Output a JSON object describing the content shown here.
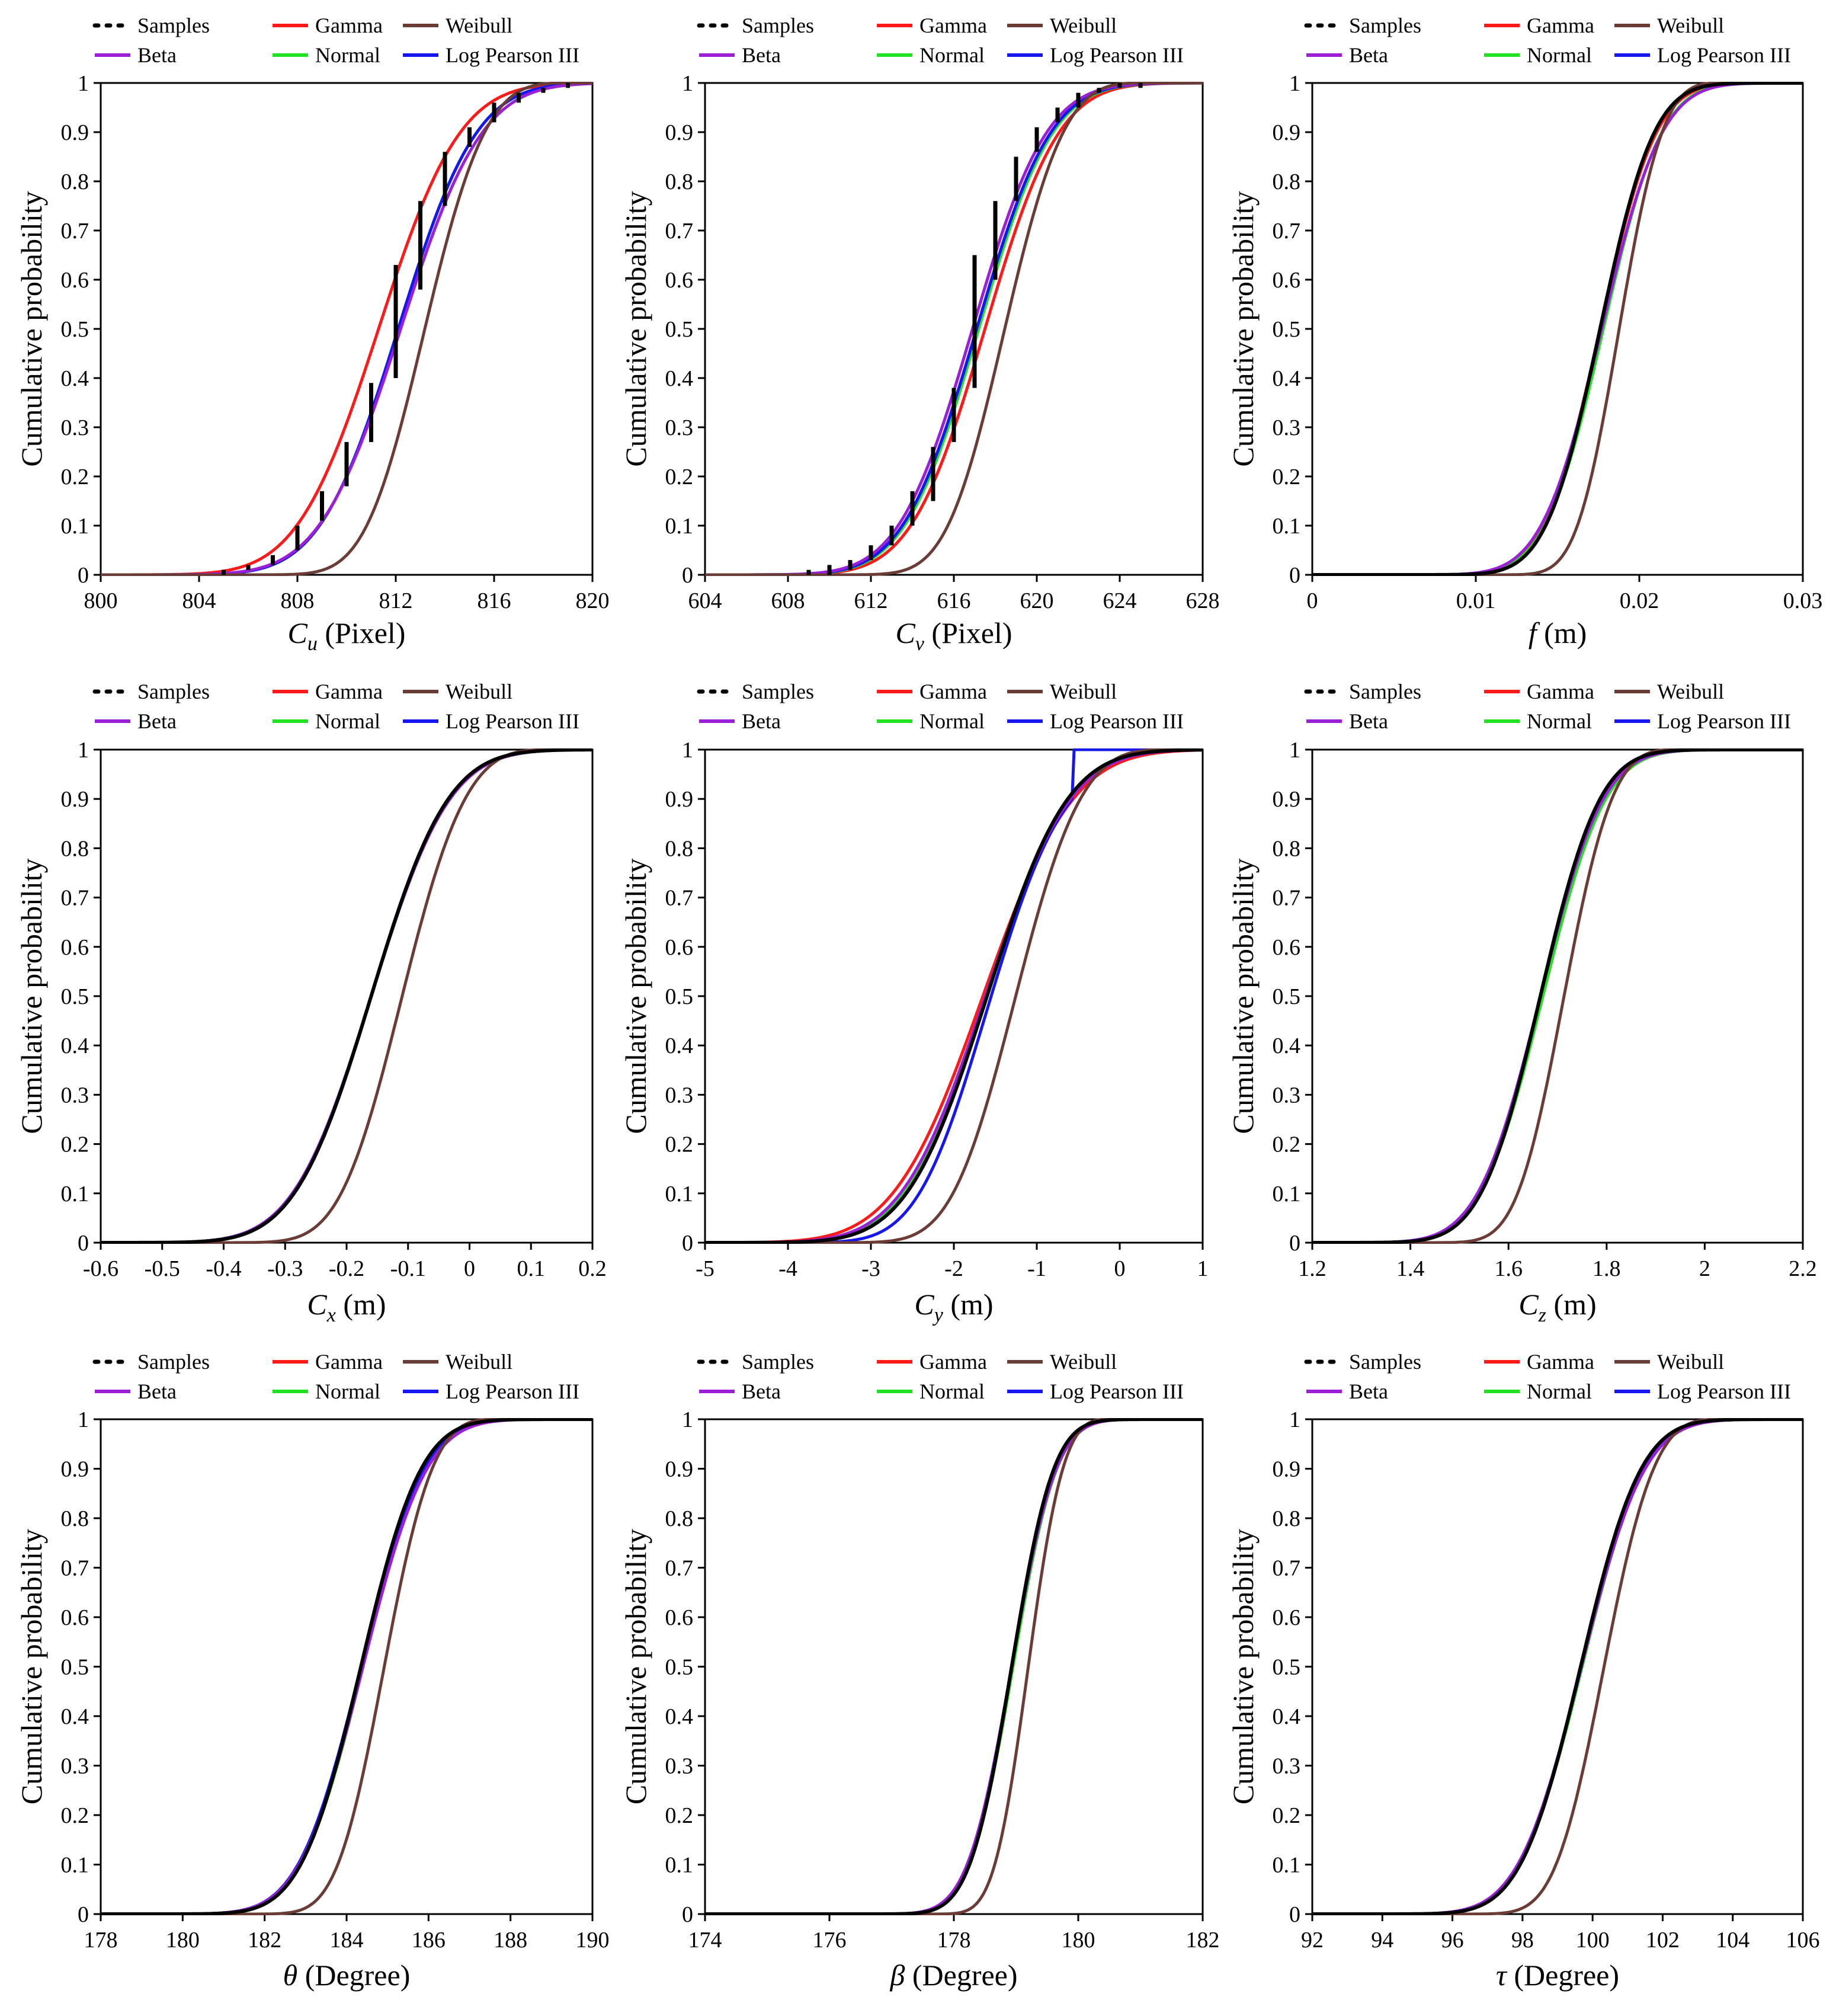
{
  "figure": {
    "ylabel": "Cumulative probability",
    "legend": {
      "row1": [
        "Samples",
        "Gamma",
        "Weibull"
      ],
      "row2": [
        "Beta",
        "Normal",
        "Log Pearson III"
      ]
    },
    "colors": {
      "Samples": "#000000",
      "Gamma": "#ff1a1a",
      "Weibull": "#6b3c35",
      "Beta": "#9b1fd6",
      "Normal": "#22e022",
      "Log Pearson III": "#1616f0"
    }
  },
  "chart_data": [
    {
      "type": "line",
      "id": "Cu",
      "xlabel_symbol": "C",
      "xlabel_sub": "u",
      "xlabel_unit": " (Pixel)",
      "xlim": [
        800,
        820
      ],
      "xticks": [
        "800",
        "804",
        "808",
        "812",
        "816",
        "820"
      ],
      "ylim": [
        0,
        1
      ],
      "yticks": [
        "0",
        "0.1",
        "0.2",
        "0.3",
        "0.4",
        "0.5",
        "0.6",
        "0.7",
        "0.8",
        "0.9",
        "1"
      ],
      "legend_position": "top",
      "ecdf_type": "bars",
      "samples_x": [
        805,
        806,
        807,
        808,
        809,
        810,
        811,
        812,
        813,
        814,
        815,
        816,
        817,
        818,
        819
      ],
      "samples_y": [
        [
          0.0,
          0.01
        ],
        [
          0.01,
          0.02
        ],
        [
          0.02,
          0.04
        ],
        [
          0.05,
          0.1
        ],
        [
          0.11,
          0.17
        ],
        [
          0.18,
          0.27
        ],
        [
          0.27,
          0.39
        ],
        [
          0.4,
          0.63
        ],
        [
          0.58,
          0.76
        ],
        [
          0.75,
          0.86
        ],
        [
          0.87,
          0.91
        ],
        [
          0.92,
          0.96
        ],
        [
          0.96,
          0.98
        ],
        [
          0.98,
          0.99
        ],
        [
          0.99,
          1.0
        ]
      ],
      "series": [
        {
          "name": "Gamma",
          "dist": "normal",
          "mu": 811.3,
          "sigma": 2.6
        },
        {
          "name": "Normal",
          "dist": "normal",
          "mu": 812.1,
          "sigma": 2.5
        },
        {
          "name": "Log Pearson III",
          "dist": "normal",
          "mu": 812.1,
          "sigma": 2.5
        },
        {
          "name": "Beta",
          "dist": "normal",
          "mu": 812.2,
          "sigma": 2.6
        },
        {
          "name": "Weibull",
          "dist": "weibull",
          "mu": 812.1,
          "sigma": 2.5
        }
      ]
    },
    {
      "type": "line",
      "id": "Cv",
      "xlabel_symbol": "C",
      "xlabel_sub": "v",
      "xlabel_unit": " (Pixel)",
      "xlim": [
        604,
        628
      ],
      "xticks": [
        "604",
        "608",
        "612",
        "616",
        "620",
        "624",
        "628"
      ],
      "ylim": [
        0,
        1
      ],
      "yticks": [
        "0",
        "0.1",
        "0.2",
        "0.3",
        "0.4",
        "0.5",
        "0.6",
        "0.7",
        "0.8",
        "0.9",
        "1"
      ],
      "legend_position": "top",
      "ecdf_type": "bars",
      "samples_x": [
        609,
        610,
        611,
        612,
        613,
        614,
        615,
        616,
        617,
        618,
        619,
        620,
        621,
        622,
        623,
        624,
        625
      ],
      "samples_y": [
        [
          0.0,
          0.01
        ],
        [
          0.0,
          0.02
        ],
        [
          0.01,
          0.03
        ],
        [
          0.03,
          0.06
        ],
        [
          0.06,
          0.1
        ],
        [
          0.1,
          0.17
        ],
        [
          0.15,
          0.26
        ],
        [
          0.27,
          0.38
        ],
        [
          0.38,
          0.65
        ],
        [
          0.6,
          0.76
        ],
        [
          0.76,
          0.85
        ],
        [
          0.86,
          0.91
        ],
        [
          0.92,
          0.95
        ],
        [
          0.95,
          0.98
        ],
        [
          0.98,
          0.99
        ],
        [
          0.99,
          1.0
        ],
        [
          0.99,
          1.0
        ]
      ],
      "series": [
        {
          "name": "Gamma",
          "dist": "normal",
          "mu": 617.5,
          "sigma": 2.8
        },
        {
          "name": "Normal",
          "dist": "normal",
          "mu": 617.2,
          "sigma": 2.8
        },
        {
          "name": "Log Pearson III",
          "dist": "normal",
          "mu": 617.1,
          "sigma": 2.8
        },
        {
          "name": "Beta",
          "dist": "normal",
          "mu": 616.9,
          "sigma": 2.8
        },
        {
          "name": "Weibull",
          "dist": "weibull",
          "mu": 617.2,
          "sigma": 2.9
        }
      ]
    },
    {
      "type": "line",
      "id": "f",
      "xlabel_symbol": "f",
      "xlabel_sub": "",
      "xlabel_unit": "  (m)",
      "xlim": [
        0,
        0.03
      ],
      "xticks": [
        "0",
        "0.01",
        "0.02",
        "0.03"
      ],
      "ylim": [
        0,
        1
      ],
      "yticks": [
        "0",
        "0.1",
        "0.2",
        "0.3",
        "0.4",
        "0.5",
        "0.6",
        "0.7",
        "0.8",
        "0.9",
        "1"
      ],
      "legend_position": "top",
      "ecdf_type": "curve",
      "series": [
        {
          "name": "Gamma",
          "dist": "normal",
          "mu": 0.0176,
          "sigma": 0.0027
        },
        {
          "name": "Normal",
          "dist": "normal",
          "mu": 0.0178,
          "sigma": 0.0028
        },
        {
          "name": "Log Pearson III",
          "dist": "normal",
          "mu": 0.0176,
          "sigma": 0.0026
        },
        {
          "name": "Beta",
          "dist": "normal",
          "mu": 0.0177,
          "sigma": 0.0029
        },
        {
          "name": "Weibull",
          "dist": "weibull",
          "mu": 0.0176,
          "sigma": 0.0027
        },
        {
          "name": "Samples",
          "dist": "normal",
          "mu": 0.0176,
          "sigma": 0.0026
        }
      ]
    },
    {
      "type": "line",
      "id": "Cx",
      "xlabel_symbol": "C",
      "xlabel_sub": "x",
      "xlabel_unit": " (m)",
      "xlim": [
        -0.6,
        0.2
      ],
      "xticks": [
        "-0.6",
        "-0.5",
        "-0.4",
        "-0.3",
        "-0.2",
        "-0.1",
        "0",
        "0.1",
        "0.2"
      ],
      "ylim": [
        0,
        1
      ],
      "yticks": [
        "0",
        "0.1",
        "0.2",
        "0.3",
        "0.4",
        "0.5",
        "0.6",
        "0.7",
        "0.8",
        "0.9",
        "1"
      ],
      "legend_position": "top",
      "ecdf_type": "curve",
      "series": [
        {
          "name": "Gamma",
          "dist": "normal",
          "mu": -0.16,
          "sigma": 0.1
        },
        {
          "name": "Normal",
          "dist": "normal",
          "mu": -0.16,
          "sigma": 0.1
        },
        {
          "name": "Log Pearson III",
          "dist": "normal",
          "mu": -0.16,
          "sigma": 0.1
        },
        {
          "name": "Beta",
          "dist": "normal",
          "mu": -0.16,
          "sigma": 0.1
        },
        {
          "name": "Weibull",
          "dist": "weibull",
          "mu": -0.155,
          "sigma": 0.105
        },
        {
          "name": "Samples",
          "dist": "normal",
          "mu": -0.16,
          "sigma": 0.098
        }
      ]
    },
    {
      "type": "line",
      "id": "Cy",
      "xlabel_symbol": "C",
      "xlabel_sub": "y",
      "xlabel_unit": " (m)",
      "xlim": [
        -5,
        1
      ],
      "xticks": [
        "-5",
        "-4",
        "-3",
        "-2",
        "-1",
        "0",
        "1"
      ],
      "ylim": [
        0,
        1
      ],
      "yticks": [
        "0",
        "0.1",
        "0.2",
        "0.3",
        "0.4",
        "0.5",
        "0.6",
        "0.7",
        "0.8",
        "0.9",
        "1"
      ],
      "legend_position": "top",
      "ecdf_type": "curve",
      "series": [
        {
          "name": "Gamma",
          "dist": "normal",
          "mu": -1.65,
          "sigma": 0.85
        },
        {
          "name": "Normal",
          "dist": "normal",
          "mu": -1.6,
          "sigma": 0.78
        },
        {
          "name": "Log Pearson III",
          "dist": "lp3",
          "mu": -1.55,
          "sigma": 0.75
        },
        {
          "name": "Beta",
          "dist": "normal",
          "mu": -1.62,
          "sigma": 0.8
        },
        {
          "name": "Weibull",
          "dist": "weibull",
          "mu": -1.6,
          "sigma": 0.8
        },
        {
          "name": "Samples",
          "dist": "normal",
          "mu": -1.6,
          "sigma": 0.76
        }
      ]
    },
    {
      "type": "line",
      "id": "Cz",
      "xlabel_symbol": "C",
      "xlabel_sub": "z",
      "xlabel_unit": " (m)",
      "xlim": [
        1.2,
        2.2
      ],
      "xticks": [
        "1.2",
        "1.4",
        "1.6",
        "1.8",
        "2",
        "2.2"
      ],
      "ylim": [
        0,
        1
      ],
      "yticks": [
        "0",
        "0.1",
        "0.2",
        "0.3",
        "0.4",
        "0.5",
        "0.6",
        "0.7",
        "0.8",
        "0.9",
        "1"
      ],
      "legend_position": "top",
      "ecdf_type": "curve",
      "series": [
        {
          "name": "Gamma",
          "dist": "normal",
          "mu": 1.67,
          "sigma": 0.1
        },
        {
          "name": "Normal",
          "dist": "normal",
          "mu": 1.67,
          "sigma": 0.1
        },
        {
          "name": "Log Pearson III",
          "dist": "normal",
          "mu": 1.665,
          "sigma": 0.1
        },
        {
          "name": "Beta",
          "dist": "normal",
          "mu": 1.665,
          "sigma": 0.1
        },
        {
          "name": "Weibull",
          "dist": "weibull",
          "mu": 1.67,
          "sigma": 0.1
        },
        {
          "name": "Samples",
          "dist": "normal",
          "mu": 1.665,
          "sigma": 0.095
        }
      ]
    },
    {
      "type": "line",
      "id": "theta",
      "xlabel_symbol": "θ",
      "xlabel_sub": "",
      "xlabel_unit": " (Degree)",
      "xlim": [
        178,
        190
      ],
      "xticks": [
        "178",
        "180",
        "182",
        "184",
        "186",
        "188",
        "190"
      ],
      "ylim": [
        0,
        1
      ],
      "yticks": [
        "0",
        "0.1",
        "0.2",
        "0.3",
        "0.4",
        "0.5",
        "0.6",
        "0.7",
        "0.8",
        "0.9",
        "1"
      ],
      "legend_position": "top",
      "ecdf_type": "curve",
      "series": [
        {
          "name": "Gamma",
          "dist": "normal",
          "mu": 184.4,
          "sigma": 1.2
        },
        {
          "name": "Normal",
          "dist": "normal",
          "mu": 184.4,
          "sigma": 1.2
        },
        {
          "name": "Log Pearson III",
          "dist": "normal",
          "mu": 184.35,
          "sigma": 1.2
        },
        {
          "name": "Beta",
          "dist": "normal",
          "mu": 184.4,
          "sigma": 1.22
        },
        {
          "name": "Weibull",
          "dist": "weibull",
          "mu": 184.4,
          "sigma": 1.2
        },
        {
          "name": "Samples",
          "dist": "normal",
          "mu": 184.35,
          "sigma": 1.15
        }
      ]
    },
    {
      "type": "line",
      "id": "beta",
      "xlabel_symbol": "β",
      "xlabel_sub": "",
      "xlabel_unit": " (Degree)",
      "xlim": [
        174,
        182
      ],
      "xticks": [
        "174",
        "176",
        "178",
        "180",
        "182"
      ],
      "ylim": [
        0,
        1
      ],
      "yticks": [
        "0",
        "0.1",
        "0.2",
        "0.3",
        "0.4",
        "0.5",
        "0.6",
        "0.7",
        "0.8",
        "0.9",
        "1"
      ],
      "legend_position": "top",
      "ecdf_type": "curve",
      "series": [
        {
          "name": "Gamma",
          "dist": "normal",
          "mu": 178.95,
          "sigma": 0.55
        },
        {
          "name": "Normal",
          "dist": "normal",
          "mu": 178.95,
          "sigma": 0.55
        },
        {
          "name": "Log Pearson III",
          "dist": "normal",
          "mu": 178.93,
          "sigma": 0.55
        },
        {
          "name": "Beta",
          "dist": "normal",
          "mu": 178.93,
          "sigma": 0.56
        },
        {
          "name": "Weibull",
          "dist": "weibull",
          "mu": 178.95,
          "sigma": 0.57
        },
        {
          "name": "Samples",
          "dist": "normal",
          "mu": 178.93,
          "sigma": 0.53
        }
      ]
    },
    {
      "type": "line",
      "id": "tau",
      "xlabel_symbol": "τ",
      "xlabel_sub": "",
      "xlabel_unit": " (Degree)",
      "xlim": [
        92,
        106
      ],
      "xticks": [
        "92",
        "94",
        "96",
        "98",
        "100",
        "102",
        "104",
        "106"
      ],
      "ylim": [
        0,
        1
      ],
      "yticks": [
        "0",
        "0.1",
        "0.2",
        "0.3",
        "0.4",
        "0.5",
        "0.6",
        "0.7",
        "0.8",
        "0.9",
        "1"
      ],
      "legend_position": "top",
      "ecdf_type": "curve",
      "series": [
        {
          "name": "Gamma",
          "dist": "normal",
          "mu": 99.7,
          "sigma": 1.4
        },
        {
          "name": "Normal",
          "dist": "normal",
          "mu": 99.7,
          "sigma": 1.4
        },
        {
          "name": "Log Pearson III",
          "dist": "normal",
          "mu": 99.68,
          "sigma": 1.4
        },
        {
          "name": "Beta",
          "dist": "normal",
          "mu": 99.68,
          "sigma": 1.42
        },
        {
          "name": "Weibull",
          "dist": "weibull",
          "mu": 99.7,
          "sigma": 1.45
        },
        {
          "name": "Samples",
          "dist": "normal",
          "mu": 99.66,
          "sigma": 1.35
        }
      ]
    }
  ]
}
